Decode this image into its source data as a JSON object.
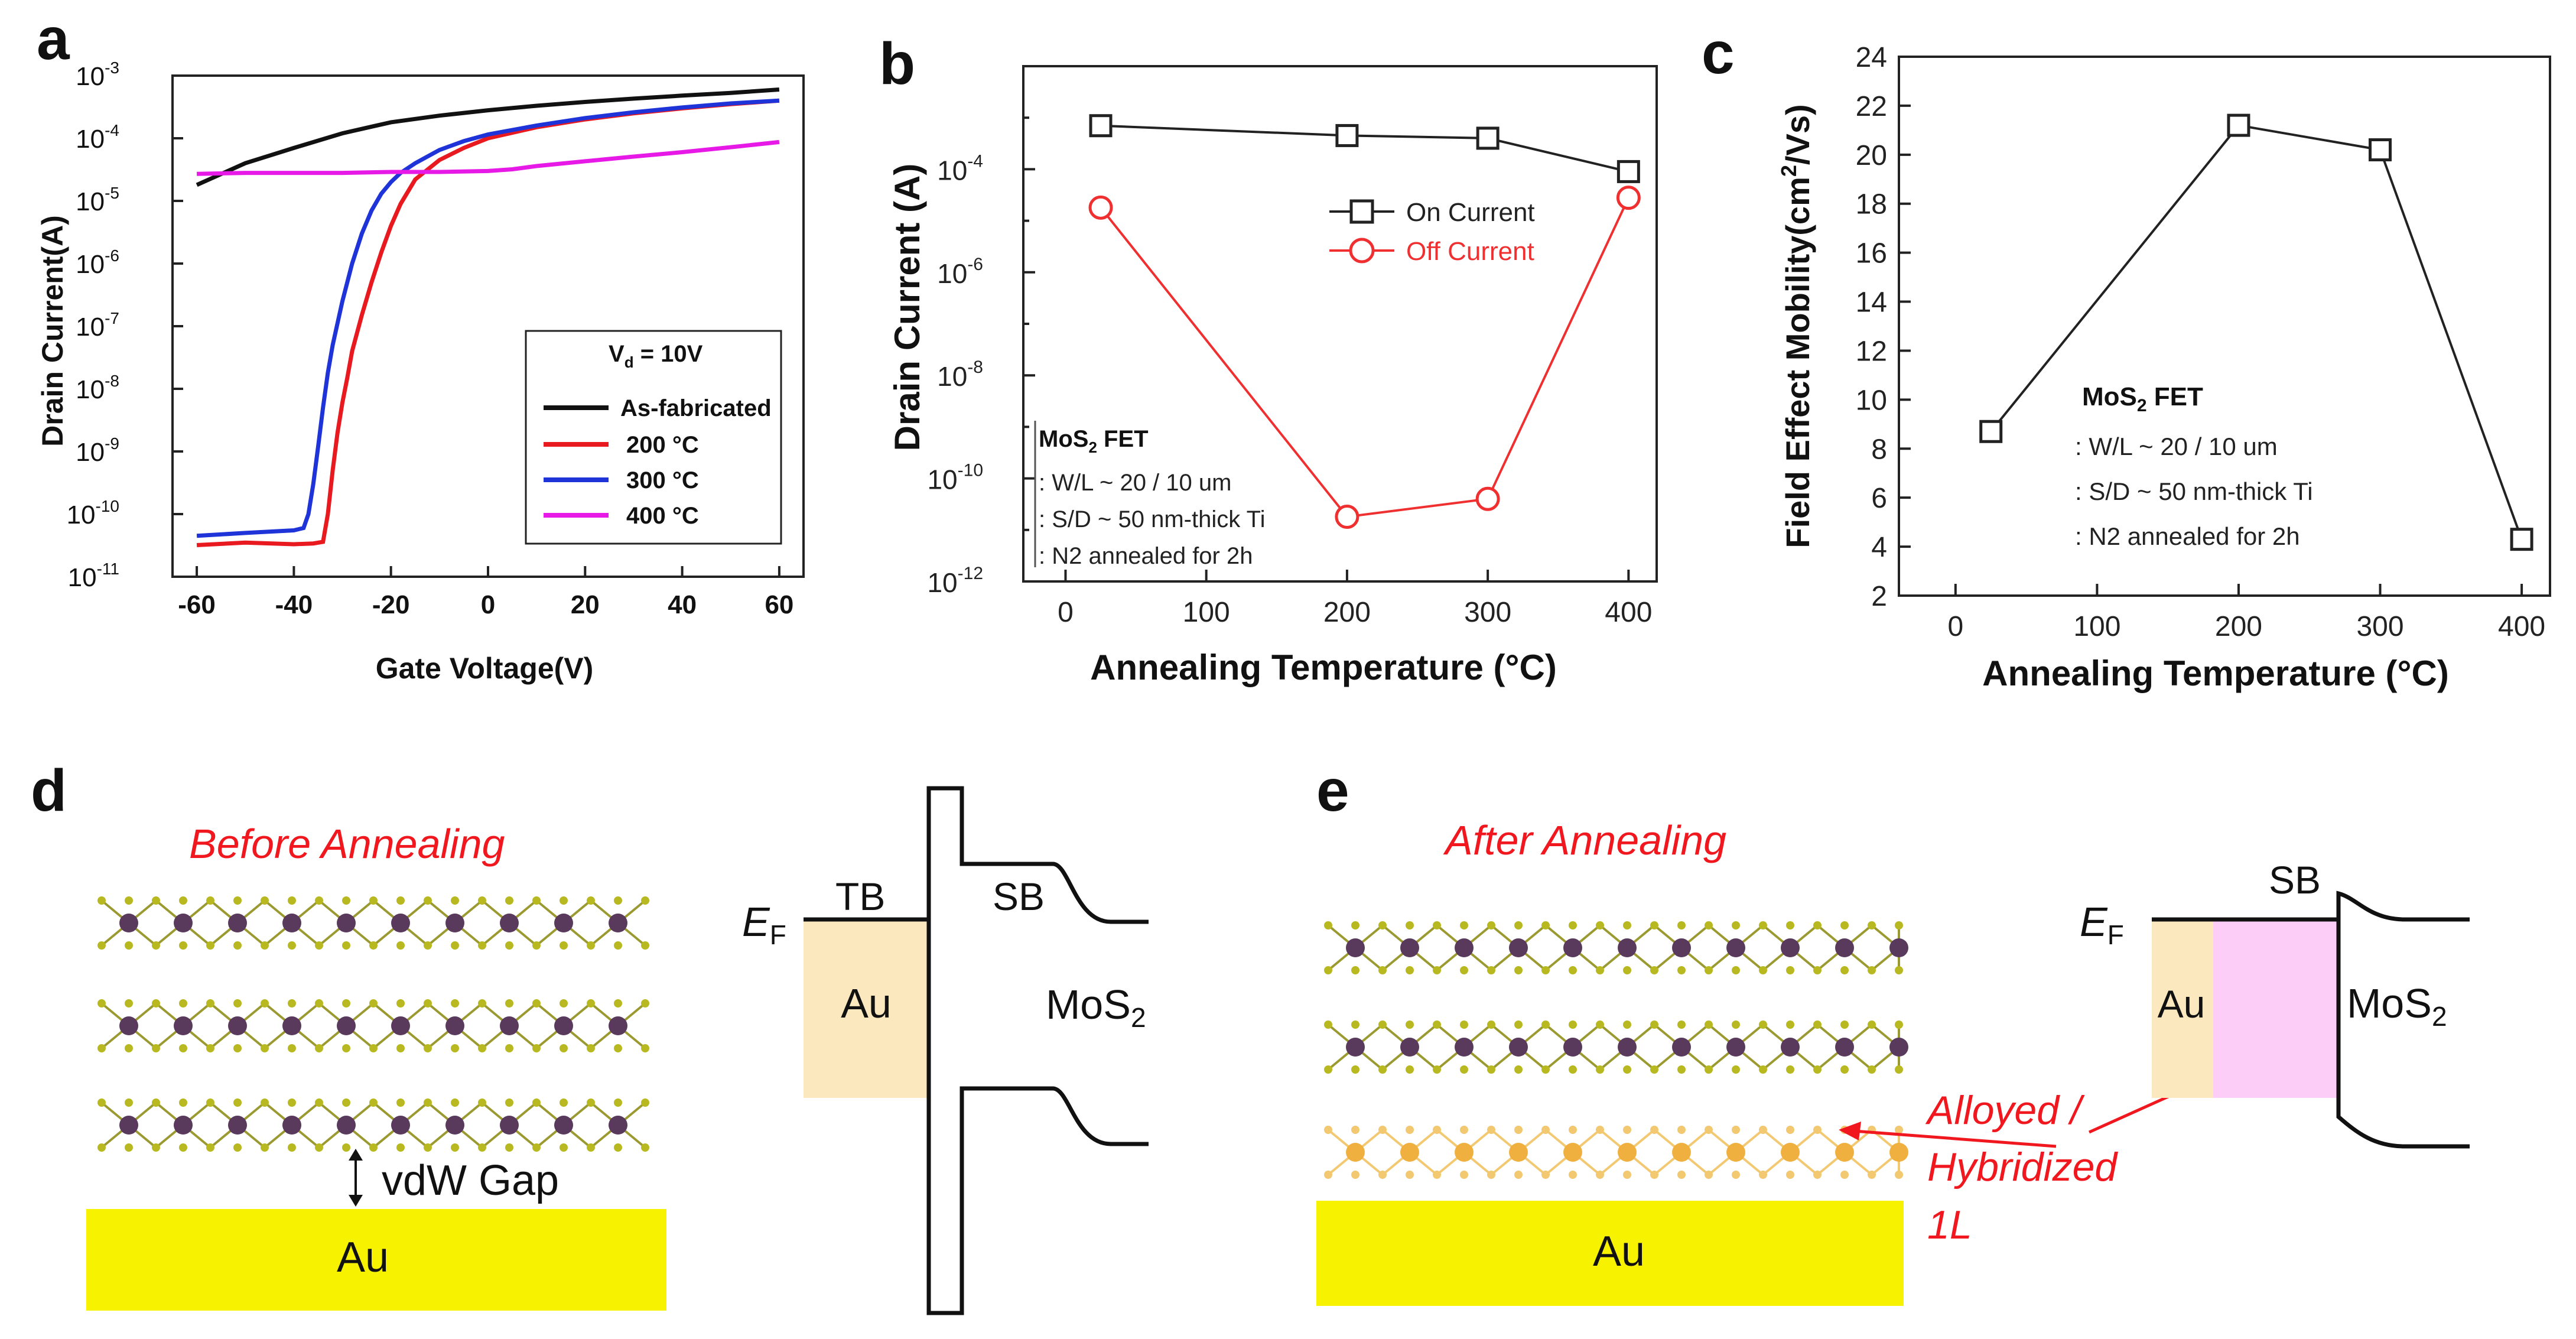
{
  "panels": {
    "a": "a",
    "b": "b",
    "c": "c",
    "d": "d",
    "e": "e"
  },
  "chart_data": [
    {
      "panel": "a",
      "type": "line",
      "xlabel": "Gate Voltage(V)",
      "ylabel": "Drain Current(A)",
      "xlim": [
        -65,
        65
      ],
      "ylim": [
        1e-11,
        0.001
      ],
      "yscale": "log",
      "xticks": [
        -60,
        -40,
        -20,
        0,
        20,
        40,
        60
      ],
      "xtick_labels": [
        "-60",
        "-40",
        "-20",
        "0",
        "20",
        "40",
        "60"
      ],
      "yticks": [
        -11,
        -10,
        -9,
        -8,
        -7,
        -6,
        -5,
        -4,
        -3
      ],
      "ytick_bases": [
        "10",
        "10",
        "10",
        "10",
        "10",
        "10",
        "10",
        "10",
        "10"
      ],
      "ytick_exps": [
        "-11",
        "-10",
        "-9",
        "-8",
        "-7",
        "-6",
        "-5",
        "-4",
        "-3"
      ],
      "legend": {
        "title_main": "V",
        "title_sub": "d",
        "title_rest": " = 10V",
        "entries": [
          "As-fabricated",
          "200 °C",
          "300 °C",
          "400 °C"
        ],
        "placement": "lower-right"
      },
      "series": [
        {
          "name": "As-fabricated",
          "color": "#111111",
          "x": [
            -60,
            -50,
            -40,
            -30,
            -20,
            -10,
            0,
            10,
            20,
            30,
            40,
            50,
            60
          ],
          "y": [
            1.8e-05,
            4e-05,
            7e-05,
            0.00012,
            0.00018,
            0.00023,
            0.00028,
            0.00033,
            0.00038,
            0.00043,
            0.00048,
            0.00053,
            0.0006
          ]
        },
        {
          "name": "200 °C",
          "color": "#e8191f",
          "x": [
            -60,
            -50,
            -40,
            -36,
            -34,
            -33,
            -32,
            -31,
            -30,
            -29,
            -28,
            -26,
            -24,
            -22,
            -20,
            -18,
            -15,
            -10,
            -5,
            0,
            10,
            20,
            30,
            40,
            50,
            60
          ],
          "y": [
            3.2e-11,
            3.5e-11,
            3.3e-11,
            3.4e-11,
            3.6e-11,
            1e-10,
            5e-10,
            2e-09,
            6e-09,
            1.5e-08,
            4e-08,
            1.5e-07,
            5e-07,
            1.5e-06,
            4e-06,
            9e-06,
            2.2e-05,
            4.5e-05,
            7e-05,
            0.0001,
            0.00015,
            0.0002,
            0.00025,
            0.0003,
            0.00035,
            0.0004
          ]
        },
        {
          "name": "300 °C",
          "color": "#1f34d8",
          "x": [
            -60,
            -50,
            -40,
            -38,
            -37,
            -36,
            -35,
            -34,
            -33,
            -32,
            -30,
            -28,
            -26,
            -24,
            -22,
            -20,
            -18,
            -15,
            -10,
            -5,
            0,
            10,
            20,
            30,
            40,
            50,
            60
          ],
          "y": [
            4.5e-11,
            5e-11,
            5.5e-11,
            6e-11,
            1e-10,
            3e-10,
            1.2e-09,
            5e-09,
            1.8e-08,
            5e-08,
            2.5e-07,
            1e-06,
            3e-06,
            7e-06,
            1.3e-05,
            2e-05,
            2.8e-05,
            4e-05,
            6.5e-05,
            9e-05,
            0.000115,
            0.00016,
            0.00021,
            0.00026,
            0.00031,
            0.00036,
            0.0004
          ]
        },
        {
          "name": "400 °C",
          "color": "#e619e6",
          "x": [
            -60,
            -50,
            -40,
            -30,
            -20,
            -10,
            0,
            5,
            10,
            20,
            30,
            40,
            50,
            60
          ],
          "y": [
            2.7e-05,
            2.8e-05,
            2.8e-05,
            2.8e-05,
            2.9e-05,
            2.9e-05,
            3e-05,
            3.2e-05,
            3.6e-05,
            4.3e-05,
            5.1e-05,
            6e-05,
            7.2e-05,
            8.7e-05
          ]
        }
      ]
    },
    {
      "panel": "b",
      "type": "line",
      "xlabel": "Annealing Temperature (°C)",
      "ylabel": "Drain Current (A)",
      "xlim": [
        -30,
        420
      ],
      "ylim": [
        1e-12,
        0.01
      ],
      "yscale": "log",
      "xticks": [
        0,
        100,
        200,
        300,
        400
      ],
      "xtick_labels": [
        "0",
        "100",
        "200",
        "300",
        "400"
      ],
      "yticks": [
        -12,
        -10,
        -8,
        -6,
        -4
      ],
      "ytick_bases": [
        "10",
        "10",
        "10",
        "10",
        "10"
      ],
      "ytick_exps": [
        "-12",
        "-10",
        "-8",
        "-6",
        "-4"
      ],
      "legend": {
        "entries": [
          "On Current",
          "Off Current"
        ],
        "placement": "upper-right"
      },
      "annotation": {
        "title_main": "MoS",
        "title_sub": "2",
        "title_rest": " FET",
        "lines": [
          ": W/L ~ 20 / 10 um",
          ": S/D ~ 50 nm-thick Ti",
          ": N2 annealed for 2h"
        ]
      },
      "series": [
        {
          "name": "On Current",
          "color": "#222222",
          "marker": "square",
          "x": [
            25,
            200,
            300,
            400
          ],
          "y": [
            0.0007,
            0.00045,
            0.0004,
            9e-05
          ]
        },
        {
          "name": "Off Current",
          "color": "#f03030",
          "marker": "circle",
          "x": [
            25,
            200,
            300,
            400
          ],
          "y": [
            1.8e-05,
            1.8e-11,
            4e-11,
            2.8e-05
          ]
        }
      ]
    },
    {
      "panel": "c",
      "type": "line",
      "xlabel": "Annealing Temperature (°C)",
      "ylabel_main": "Field Effect Mobility(cm",
      "ylabel_sup": "2",
      "ylabel_rest": "/Vs)",
      "xlim": [
        -40,
        420
      ],
      "ylim": [
        2,
        24
      ],
      "xticks": [
        0,
        100,
        200,
        300,
        400
      ],
      "xtick_labels": [
        "0",
        "100",
        "200",
        "300",
        "400"
      ],
      "yticks": [
        2,
        4,
        6,
        8,
        10,
        12,
        14,
        16,
        18,
        20,
        22,
        24
      ],
      "ytick_labels": [
        "2",
        "4",
        "6",
        "8",
        "10",
        "12",
        "14",
        "16",
        "18",
        "20",
        "22",
        "24"
      ],
      "annotation": {
        "title_main": "MoS",
        "title_sub": "2",
        "title_rest": " FET",
        "lines": [
          ": W/L ~ 20 / 10 um",
          ": S/D ~ 50 nm-thick Ti",
          ": N2 annealed for 2h"
        ]
      },
      "series": [
        {
          "color": "#222222",
          "marker": "square",
          "x": [
            25,
            200,
            300,
            400
          ],
          "y": [
            8.7,
            21.2,
            20.2,
            4.3
          ]
        }
      ]
    }
  ],
  "diagram_d": {
    "title": "Before Annealing",
    "gap_label": "vdW Gap",
    "substrate": "Au",
    "band": {
      "ef_main": "E",
      "ef_sub": "F",
      "tb": "TB",
      "sb": "SB",
      "metal": "Au",
      "semi_main": "MoS",
      "semi_sub": "2"
    }
  },
  "diagram_e": {
    "title": "After Annealing",
    "substrate": "Au",
    "alloy_lines": [
      "Alloyed /",
      "Hybridized",
      "1L"
    ],
    "band": {
      "ef_main": "E",
      "ef_sub": "F",
      "sb": "SB",
      "metal": "Au",
      "semi_main": "MoS",
      "semi_sub": "2"
    }
  },
  "colors": {
    "red_label": "#f0181e",
    "gold": "#f7f300",
    "au_band": "#fbe8bf",
    "hybrid": "#fbcdf7",
    "mo_atom": "#5a3a5c",
    "s_atom": "#b8b820",
    "au_atom": "#f0b040"
  }
}
